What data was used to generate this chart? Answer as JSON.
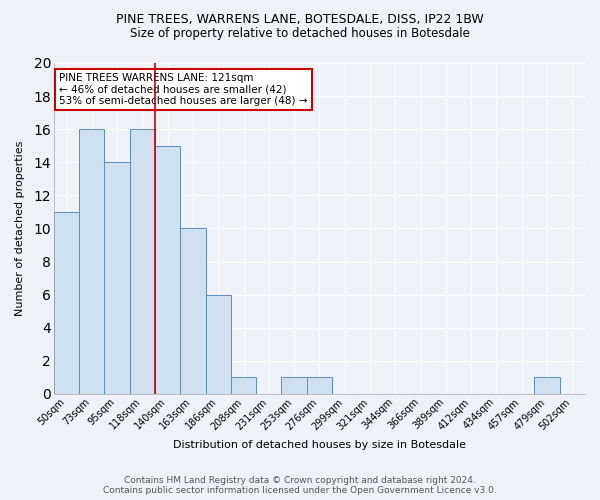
{
  "title1": "PINE TREES, WARRENS LANE, BOTESDALE, DISS, IP22 1BW",
  "title2": "Size of property relative to detached houses in Botesdale",
  "xlabel": "Distribution of detached houses by size in Botesdale",
  "ylabel": "Number of detached properties",
  "categories": [
    "50sqm",
    "73sqm",
    "95sqm",
    "118sqm",
    "140sqm",
    "163sqm",
    "186sqm",
    "208sqm",
    "231sqm",
    "253sqm",
    "276sqm",
    "299sqm",
    "321sqm",
    "344sqm",
    "366sqm",
    "389sqm",
    "412sqm",
    "434sqm",
    "457sqm",
    "479sqm",
    "502sqm"
  ],
  "values": [
    11,
    16,
    14,
    16,
    15,
    10,
    6,
    1,
    0,
    1,
    1,
    0,
    0,
    0,
    0,
    0,
    0,
    0,
    0,
    1,
    0
  ],
  "bar_color": "#cfe0f0",
  "bar_edge_color": "#5b8ec4",
  "ylim": [
    0,
    20
  ],
  "yticks": [
    0,
    2,
    4,
    6,
    8,
    10,
    12,
    14,
    16,
    18,
    20
  ],
  "red_line_x": 3.5,
  "annotation_line1": "PINE TREES WARRENS LANE: 121sqm",
  "annotation_line2": "← 46% of detached houses are smaller (42)",
  "annotation_line3": "53% of semi-detached houses are larger (48) →",
  "annotation_box_color": "#ffffff",
  "annotation_box_edge": "#cc0000",
  "footnote1": "Contains HM Land Registry data © Crown copyright and database right 2024.",
  "footnote2": "Contains public sector information licensed under the Open Government Licence v3.0.",
  "background_color": "#eef2f8",
  "grid_color": "#ffffff",
  "title_fontsize": 9,
  "subtitle_fontsize": 8.5,
  "axis_label_fontsize": 8,
  "tick_fontsize": 7,
  "annotation_fontsize": 7.5,
  "footnote_fontsize": 6.5
}
